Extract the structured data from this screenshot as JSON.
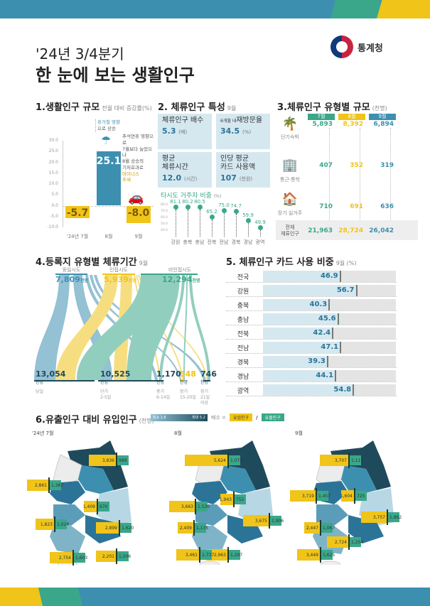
{
  "header": {
    "subtitle": "'24년 3/4분기",
    "title": "한 눈에 보는 생활인구",
    "org": "통계청"
  },
  "colors": {
    "blue": "#3d8fb0",
    "teal": "#3aa78a",
    "yellow": "#f0c419",
    "dark": "#1f4a5c",
    "lightblue": "#d5e8f0"
  },
  "section1": {
    "title": "1.생활인구 규모",
    "subtitle": "전월 대비 증감률(%)",
    "note_aug": "휴가철 영향으로 상승",
    "note_aug_1": "휴가철 영향",
    "note_aug_2": "으로 상승",
    "note_sep_1": "추석연휴 영향으로",
    "note_sep_2": "7월보다 늘었으나",
    "note_sep_3": "8월 상승의",
    "note_sep_4": "기저효과로",
    "note_sep_5": "마이너스",
    "note_sep_6": "추세"
  },
  "section2": {
    "title": "2. 체류인구 특성",
    "subtitle": "9월",
    "cards": [
      {
        "label": "체류인구 배수",
        "value": "5.3",
        "unit": "(배)"
      },
      {
        "label_prefix": "6개월 내",
        "label": "재방문율",
        "value": "34.5",
        "unit": "(%)"
      },
      {
        "label": "평균 체류시간",
        "label_1": "평균",
        "label_2": "체류시간",
        "value": "12.0",
        "unit": "(시간)"
      },
      {
        "label": "인당 평균 카드 사용액",
        "label_1": "인당 평균",
        "label_2": "카드 사용액",
        "value": "107",
        "unit": "(천원)"
      }
    ],
    "lollipop_title": "타시도 거주자 비중",
    "lollipop_unit": "(%)"
  },
  "section3": {
    "title": "3.체류인구 유형별 규모",
    "subtitle": "(천명)",
    "months": [
      "7월",
      "8월",
      "9월"
    ],
    "rows": [
      {
        "label": "단기숙박",
        "icon": "palm-tree-icon",
        "values": [
          "5,893",
          "8,392",
          "6,894"
        ]
      },
      {
        "label": "통근·통학",
        "icon": "building-icon",
        "values": [
          "407",
          "352",
          "319"
        ]
      },
      {
        "label": "장기 실거주",
        "icon": "house-icon",
        "values": [
          "710",
          "691",
          "636"
        ]
      }
    ],
    "total": {
      "label_1": "전체",
      "label_2": "체류인구",
      "values": [
        "21,963",
        "28,724",
        "26,042"
      ]
    }
  },
  "section4": {
    "title": "4.등록지 유형별 체류기간",
    "subtitle": "9월",
    "sources": [
      {
        "label": "동일시도",
        "value": "7,809",
        "unit": "천명"
      },
      {
        "label": "인접시도",
        "value": "5,939",
        "unit": "천명"
      },
      {
        "label": "비인접시도",
        "value": "12,294",
        "unit": "천명"
      }
    ],
    "destinations": [
      {
        "value": "13,054",
        "unit": "천명",
        "label_1": "당일",
        "label_2": ""
      },
      {
        "value": "10,525",
        "unit": "천명",
        "label_1": "단기",
        "label_2": "2-5일"
      },
      {
        "value": "1,170",
        "unit": "천명",
        "label_1": "중기",
        "label_2": "6-14일"
      },
      {
        "value": "548",
        "unit": "천명",
        "label_1": "장기",
        "label_2": "15-20일"
      },
      {
        "value": "746",
        "unit": "천명",
        "label_1": "장기",
        "label_2": "21일이상"
      }
    ]
  },
  "section5": {
    "title": "5. 체류인구 카드 사용 비중",
    "subtitle": "9월 (%)"
  },
  "section6": {
    "title": "6.유출인구 대비 유입인구",
    "subtitle": "(천명)",
    "legend_min": "최소 1.6",
    "legend_max": "최대 5.2",
    "ratio_label": "배수 =",
    "inflow_label": "유입인구",
    "slash": "/",
    "outflow_label": "유출인구",
    "maps": [
      {
        "title": "'24년 7월",
        "pairs": [
          {
            "region": "강원",
            "in": "3,836",
            "out": "989"
          },
          {
            "region": "경기",
            "in": "2,861",
            "out": "1,387"
          },
          {
            "region": "충북",
            "in": "1,409",
            "out": "670"
          },
          {
            "region": "경북",
            "in": "2,899",
            "out": "1,620"
          },
          {
            "region": "전북",
            "in": "1,823",
            "out": "1,028"
          },
          {
            "region": "경남",
            "in": "2,201",
            "out": "1,206"
          },
          {
            "region": "전남",
            "in": "2,754",
            "out": "1,603"
          }
        ]
      },
      {
        "title": "8월",
        "pairs": [
          {
            "region": "강원",
            "in": "5,624",
            "out": "1,075"
          },
          {
            "region": "충남",
            "in": "3,663",
            "out": "1,530"
          },
          {
            "region": "충북",
            "in": "1,943",
            "out": "752"
          },
          {
            "region": "경북",
            "in": "3,675",
            "out": "1,906"
          },
          {
            "region": "전북",
            "in": "2,409",
            "out": "1,135"
          },
          {
            "region": "경남",
            "in": "2,963",
            "out": "1,297"
          },
          {
            "region": "전남",
            "in": "3,461",
            "out": "1,737"
          }
        ]
      },
      {
        "title": "9월",
        "pairs": [
          {
            "region": "강원",
            "in": "3,707",
            "out": "1,111"
          },
          {
            "region": "충남",
            "in": "3,719",
            "out": "1,457"
          },
          {
            "region": "충북",
            "in": "1,604",
            "out": "725"
          },
          {
            "region": "경북",
            "in": "3,757",
            "out": "1,862"
          },
          {
            "region": "전북",
            "in": "2,447",
            "out": "1,067"
          },
          {
            "region": "경남",
            "in": "2,724",
            "out": "1,254"
          },
          {
            "region": "전남",
            "in": "3,449",
            "out": "1,625"
          }
        ]
      }
    ],
    "region_labels": [
      "강원",
      "충북",
      "충남",
      "경북",
      "전북",
      "경남",
      "전남"
    ]
  },
  "chart_data": [
    {
      "type": "bar",
      "title": "1.생활인구 규모 - 전월 대비 증감률(%)",
      "categories": [
        "'24년 7월",
        "8월",
        "9월"
      ],
      "values": [
        -5.7,
        25.1,
        -8.0
      ],
      "xlabel": "",
      "ylabel": "전월 대비 증감률(%)",
      "ylim": [
        -10.0,
        30.0
      ],
      "yticks": [
        30.0,
        25.0,
        20.0,
        15.0,
        10.0,
        5.0,
        0.0,
        -5.0,
        -10.0
      ],
      "colors": [
        "#f0c419",
        "#3d8fb0",
        "#f0c419"
      ]
    },
    {
      "type": "scatter",
      "title": "타시도 거주자 비중 (%)",
      "categories": [
        "강원",
        "충북",
        "충남",
        "전북",
        "전남",
        "경북",
        "경남",
        "광역"
      ],
      "values": [
        81.1,
        80.2,
        80.5,
        65.2,
        75.0,
        74.7,
        59.9,
        49.9
      ],
      "yticks": [
        80.0,
        70.0,
        60.0,
        50.0,
        40.0
      ],
      "ylim": [
        40,
        85
      ]
    },
    {
      "type": "table",
      "title": "3.체류인구 유형별 규모 (천명)",
      "columns": [
        "7월",
        "8월",
        "9월"
      ],
      "rows": [
        {
          "name": "단기숙박",
          "values": [
            5893,
            8392,
            6894
          ]
        },
        {
          "name": "통근·통학",
          "values": [
            407,
            352,
            319
          ]
        },
        {
          "name": "장기 실거주",
          "values": [
            710,
            691,
            636
          ]
        },
        {
          "name": "전체 체류인구",
          "values": [
            21963,
            28724,
            26042
          ]
        }
      ]
    },
    {
      "type": "sankey",
      "title": "4.등록지 유형별 체류기간 9월 (천명)",
      "sources": [
        {
          "name": "동일시도",
          "value": 7809
        },
        {
          "name": "인접시도",
          "value": 5939
        },
        {
          "name": "비인접시도",
          "value": 12294
        }
      ],
      "targets": [
        {
          "name": "당일",
          "value": 13054
        },
        {
          "name": "단기 2-5일",
          "value": 10525
        },
        {
          "name": "중기 6-14일",
          "value": 1170
        },
        {
          "name": "장기 15-20일",
          "value": 548
        },
        {
          "name": "장기 21일이상",
          "value": 746
        }
      ]
    },
    {
      "type": "bar",
      "title": "5. 체류인구 카드 사용 비중 9월 (%)",
      "orientation": "horizontal",
      "categories": [
        "전국",
        "강원",
        "충북",
        "충남",
        "전북",
        "전남",
        "경북",
        "경남",
        "광역"
      ],
      "values": [
        46.9,
        56.7,
        40.3,
        45.6,
        42.4,
        47.1,
        39.3,
        44.1,
        54.8
      ],
      "xlim": [
        0,
        100
      ]
    },
    {
      "type": "bar",
      "title": "6.유출인구 대비 유입인구 (천명)",
      "series": [
        {
          "name": "'24년 7월 유입인구",
          "categories": [
            "강원",
            "경기",
            "충북",
            "경북",
            "전북",
            "경남",
            "전남"
          ],
          "values": [
            3836,
            2861,
            1409,
            2899,
            1823,
            2201,
            2754
          ]
        },
        {
          "name": "'24년 7월 유출인구",
          "categories": [
            "강원",
            "경기",
            "충북",
            "경북",
            "전북",
            "경남",
            "전남"
          ],
          "values": [
            989,
            1387,
            670,
            1620,
            1028,
            1206,
            1603
          ]
        },
        {
          "name": "8월 유입인구",
          "categories": [
            "강원",
            "충남",
            "충북",
            "경북",
            "전북",
            "경남",
            "전남"
          ],
          "values": [
            5624,
            3663,
            1943,
            3675,
            2409,
            2963,
            3461
          ]
        },
        {
          "name": "8월 유출인구",
          "categories": [
            "강원",
            "충남",
            "충북",
            "경북",
            "전북",
            "경남",
            "전남"
          ],
          "values": [
            1075,
            1530,
            752,
            1906,
            1135,
            1297,
            1737
          ]
        },
        {
          "name": "9월 유입인구",
          "categories": [
            "강원",
            "충남",
            "충북",
            "경북",
            "전북",
            "경남",
            "전남"
          ],
          "values": [
            3707,
            3719,
            1604,
            3757,
            2447,
            2724,
            3449
          ]
        },
        {
          "name": "9월 유출인구",
          "categories": [
            "강원",
            "충남",
            "충북",
            "경북",
            "전북",
            "경남",
            "전남"
          ],
          "values": [
            1111,
            1457,
            725,
            1862,
            1067,
            1254,
            1625
          ]
        }
      ],
      "legend": [
        "최소 1.6",
        "최대 5.2",
        "배수 = 유입인구 / 유출인구"
      ]
    }
  ]
}
